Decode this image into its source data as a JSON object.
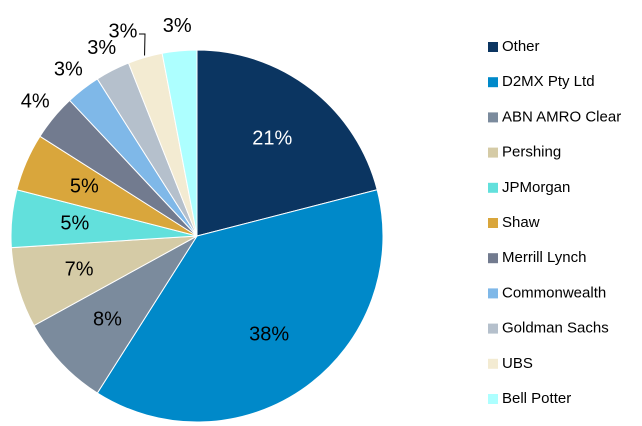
{
  "chart_data": {
    "type": "pie",
    "categories": [
      "Other",
      "D2MX Pty Ltd",
      "ABN AMRO Clear",
      "Pershing",
      "JPMorgan",
      "Shaw",
      "Merrill Lynch",
      "Commonwealth",
      "Goldman Sachs",
      "UBS",
      "Bell Potter"
    ],
    "values": [
      21,
      38,
      8,
      7,
      5,
      5,
      4,
      3,
      3,
      3,
      3
    ],
    "value_labels": [
      "21%",
      "38%",
      "8%",
      "7%",
      "5%",
      "5%",
      "4%",
      "3%",
      "3%",
      "3%",
      "3%"
    ],
    "colors": [
      "#0b3561",
      "#0089c9",
      "#7b8b9d",
      "#d5cba6",
      "#62e0dc",
      "#d9a63c",
      "#727b8f",
      "#7fb8e8",
      "#b5c0cc",
      "#f3ebd2",
      "#adffff"
    ],
    "legend": "right"
  }
}
